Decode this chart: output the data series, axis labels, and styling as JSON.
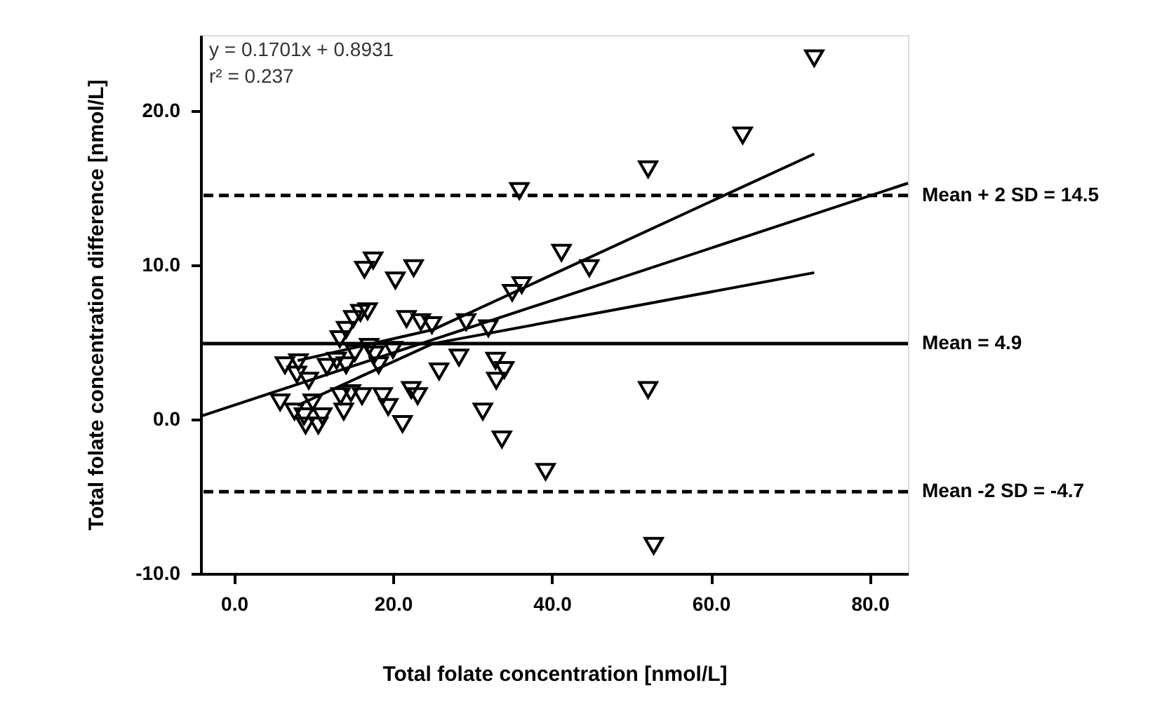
{
  "chart_data": {
    "type": "scatter",
    "xlabel": "Total folate concentration [nmol/L]",
    "ylabel": "Total folate concentration difference [nmol/L]",
    "marker": "triangle",
    "series": [
      {
        "color": "#000000",
        "x": [
          73.0,
          64.0,
          52.1,
          35.9,
          41.2,
          44.7,
          36.2,
          35.0,
          32.0,
          52.1,
          39.2,
          52.8,
          31.3,
          33.7,
          33.0,
          34.0,
          17.5,
          16.4,
          20.3,
          22.6,
          16.8,
          15.9,
          15.0,
          14.1,
          13.3,
          21.7,
          23.5,
          24.9,
          29.2,
          28.3,
          25.8,
          32.9,
          6.4,
          8.1,
          7.9,
          9.4,
          5.8,
          7.6,
          9.0,
          10.6,
          8.8,
          11.7,
          12.9,
          14.1,
          15.2,
          17.7,
          18.2,
          13.4,
          13.8,
          14.7,
          16.1,
          18.7,
          19.4,
          21.2,
          22.3,
          23.1,
          20.0,
          17.0,
          11.1,
          9.9
        ],
        "values": [
          23.4,
          18.4,
          16.2,
          14.8,
          10.8,
          9.8,
          8.7,
          8.2,
          5.9,
          1.9,
          -3.4,
          -8.2,
          0.5,
          -1.3,
          2.5,
          3.2,
          10.3,
          9.7,
          9.0,
          9.8,
          7.0,
          6.9,
          6.5,
          5.8,
          5.2,
          6.5,
          6.3,
          6.1,
          6.3,
          4.0,
          3.1,
          3.8,
          3.5,
          3.7,
          2.9,
          2.5,
          1.1,
          0.5,
          -0.4,
          -0.4,
          0.2,
          3.4,
          3.8,
          3.5,
          4.3,
          4.2,
          3.5,
          1.5,
          0.5,
          1.7,
          1.5,
          1.5,
          0.8,
          -0.3,
          1.9,
          1.5,
          4.5,
          4.7,
          0.2,
          1.1
        ]
      },
      {
        "type": "line",
        "marker": "none",
        "line_style": "solid",
        "color": "#000000",
        "x": [
          -4.2,
          84.8
        ],
        "values": [
          0.2,
          15.3
        ]
      },
      {
        "type": "line",
        "marker": "none",
        "line_style": "solid",
        "color": "#000000",
        "x": [
          8,
          25,
          73
        ],
        "values": [
          3.8,
          5.8,
          17.2
        ]
      },
      {
        "type": "line",
        "marker": "none",
        "line_style": "solid",
        "color": "#000000",
        "x": [
          8,
          25,
          73
        ],
        "values": [
          0.9,
          4.9,
          9.5
        ]
      }
    ],
    "xlim": [
      -4.2,
      84.8
    ],
    "ylim": [
      -10,
      24.9
    ],
    "xticks": [
      {
        "value": 0,
        "label": "0.0"
      },
      {
        "value": 20,
        "label": "20.0"
      },
      {
        "value": 40,
        "label": "40.0"
      },
      {
        "value": 60,
        "label": "60.0"
      },
      {
        "value": 80,
        "label": "80.0"
      }
    ],
    "yticks": [
      {
        "value": -10,
        "label": "-10.0"
      },
      {
        "value": 0,
        "label": "0.0"
      },
      {
        "value": 10,
        "label": "10.0"
      },
      {
        "value": 20,
        "label": "20.0"
      }
    ],
    "ref_lines": [
      {
        "axis": "y",
        "value": 14.5,
        "label": "Mean + 2 SD = 14.5",
        "line_style": "dashed"
      },
      {
        "axis": "y",
        "value": 4.9,
        "label": "Mean = 4.9",
        "line_style": "solid"
      },
      {
        "axis": "y",
        "value": -4.7,
        "label": "Mean -2 SD = -4.7",
        "line_style": "dashed"
      }
    ],
    "annotations": [
      "y = 0.1701x + 0.8931",
      "r² = 0.237"
    ],
    "grid": false
  }
}
